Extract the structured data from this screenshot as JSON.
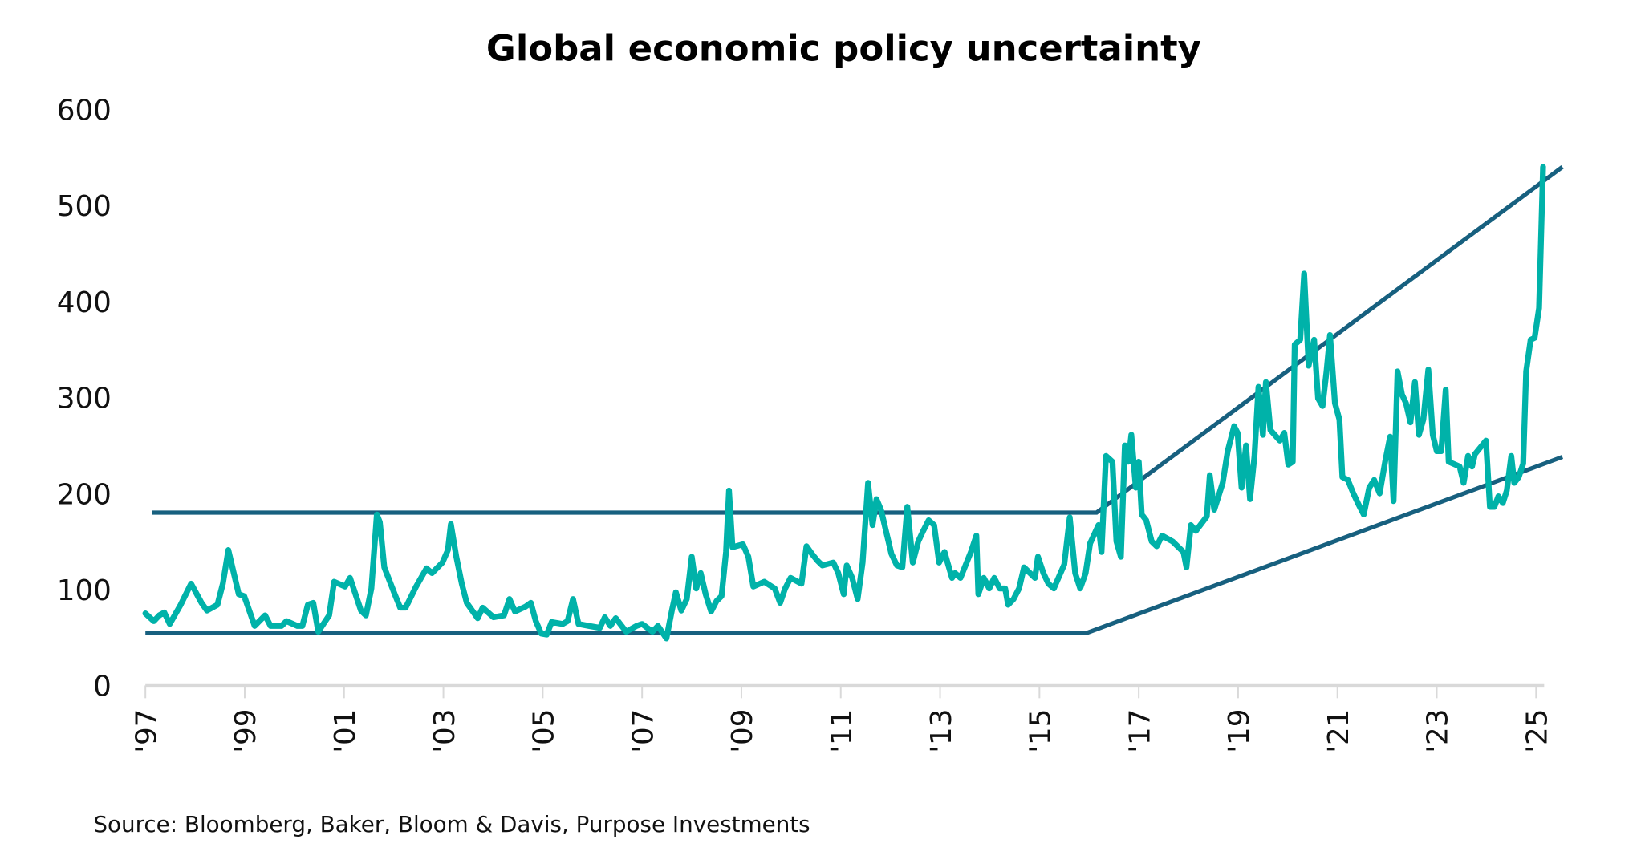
{
  "chart_data": {
    "type": "line",
    "title": "Global economic policy uncertainty",
    "xlabel": "",
    "ylabel": "",
    "ylim": [
      0,
      600
    ],
    "xlim": [
      1997,
      2025.5
    ],
    "y_ticks": [
      "0",
      "100",
      "200",
      "300",
      "400",
      "500",
      "600"
    ],
    "x_ticks": [
      {
        "year": 1997,
        "label": "'97"
      },
      {
        "year": 1999,
        "label": "'99"
      },
      {
        "year": 2001,
        "label": "'01"
      },
      {
        "year": 2003,
        "label": "'03"
      },
      {
        "year": 2005,
        "label": "'05"
      },
      {
        "year": 2007,
        "label": "'07"
      },
      {
        "year": 2009,
        "label": "'09"
      },
      {
        "year": 2011,
        "label": "'11"
      },
      {
        "year": 2013,
        "label": "'13"
      },
      {
        "year": 2015,
        "label": "'15"
      },
      {
        "year": 2017,
        "label": "'17"
      },
      {
        "year": 2019,
        "label": "'19"
      },
      {
        "year": 2021,
        "label": "'21"
      },
      {
        "year": 2023,
        "label": "'23"
      },
      {
        "year": 2025,
        "label": "'25"
      }
    ],
    "grid": false,
    "legend": "none",
    "colors": {
      "series": "#00B2A9",
      "trendlines": "#17607F",
      "axis": "#d9d9d9"
    },
    "series": [
      {
        "points": [
          [
            1997.0,
            75
          ],
          [
            1997.17,
            67
          ],
          [
            1997.28,
            73
          ],
          [
            1997.38,
            76
          ],
          [
            1997.49,
            64
          ],
          [
            1997.71,
            84
          ],
          [
            1997.92,
            106
          ],
          [
            1998.13,
            86
          ],
          [
            1998.24,
            78
          ],
          [
            1998.45,
            84
          ],
          [
            1998.56,
            106
          ],
          [
            1998.67,
            141
          ],
          [
            1998.88,
            95
          ],
          [
            1998.99,
            93
          ],
          [
            1999.2,
            62
          ],
          [
            1999.41,
            73
          ],
          [
            1999.52,
            62
          ],
          [
            1999.74,
            62
          ],
          [
            1999.84,
            67
          ],
          [
            2000.06,
            62
          ],
          [
            2000.16,
            62
          ],
          [
            2000.27,
            84
          ],
          [
            2000.38,
            86
          ],
          [
            2000.48,
            56
          ],
          [
            2000.7,
            73
          ],
          [
            2000.8,
            108
          ],
          [
            2001.02,
            103
          ],
          [
            2001.12,
            112
          ],
          [
            2001.34,
            78
          ],
          [
            2001.44,
            73
          ],
          [
            2001.55,
            101
          ],
          [
            2001.66,
            178
          ],
          [
            2001.72,
            170
          ],
          [
            2001.81,
            123
          ],
          [
            2002.02,
            95
          ],
          [
            2002.13,
            81
          ],
          [
            2002.24,
            81
          ],
          [
            2002.45,
            103
          ],
          [
            2002.66,
            122
          ],
          [
            2002.77,
            117
          ],
          [
            2002.98,
            128
          ],
          [
            2003.09,
            141
          ],
          [
            2003.15,
            168
          ],
          [
            2003.26,
            134
          ],
          [
            2003.37,
            106
          ],
          [
            2003.47,
            86
          ],
          [
            2003.69,
            70
          ],
          [
            2003.79,
            81
          ],
          [
            2004.01,
            71
          ],
          [
            2004.22,
            73
          ],
          [
            2004.33,
            90
          ],
          [
            2004.44,
            77
          ],
          [
            2004.65,
            82
          ],
          [
            2004.76,
            86
          ],
          [
            2004.86,
            67
          ],
          [
            2004.97,
            54
          ],
          [
            2005.08,
            53
          ],
          [
            2005.18,
            66
          ],
          [
            2005.4,
            64
          ],
          [
            2005.5,
            67
          ],
          [
            2005.61,
            90
          ],
          [
            2005.72,
            64
          ],
          [
            2005.93,
            62
          ],
          [
            2006.15,
            60
          ],
          [
            2006.25,
            71
          ],
          [
            2006.36,
            62
          ],
          [
            2006.47,
            70
          ],
          [
            2006.68,
            56
          ],
          [
            2006.89,
            62
          ],
          [
            2007.0,
            64
          ],
          [
            2007.21,
            56
          ],
          [
            2007.32,
            62
          ],
          [
            2007.49,
            49
          ],
          [
            2007.6,
            78
          ],
          [
            2007.68,
            97
          ],
          [
            2007.79,
            78
          ],
          [
            2007.9,
            90
          ],
          [
            2008.0,
            134
          ],
          [
            2008.09,
            101
          ],
          [
            2008.18,
            117
          ],
          [
            2008.28,
            95
          ],
          [
            2008.39,
            77
          ],
          [
            2008.5,
            88
          ],
          [
            2008.6,
            93
          ],
          [
            2008.69,
            139
          ],
          [
            2008.75,
            203
          ],
          [
            2008.82,
            144
          ],
          [
            2009.03,
            147
          ],
          [
            2009.14,
            134
          ],
          [
            2009.24,
            103
          ],
          [
            2009.46,
            108
          ],
          [
            2009.67,
            101
          ],
          [
            2009.78,
            86
          ],
          [
            2009.88,
            101
          ],
          [
            2009.99,
            112
          ],
          [
            2010.21,
            106
          ],
          [
            2010.31,
            145
          ],
          [
            2010.42,
            137
          ],
          [
            2010.53,
            130
          ],
          [
            2010.63,
            125
          ],
          [
            2010.85,
            128
          ],
          [
            2010.95,
            117
          ],
          [
            2011.06,
            95
          ],
          [
            2011.12,
            125
          ],
          [
            2011.23,
            112
          ],
          [
            2011.34,
            90
          ],
          [
            2011.44,
            128
          ],
          [
            2011.55,
            211
          ],
          [
            2011.64,
            167
          ],
          [
            2011.72,
            194
          ],
          [
            2011.81,
            183
          ],
          [
            2011.91,
            161
          ],
          [
            2012.02,
            137
          ],
          [
            2012.13,
            125
          ],
          [
            2012.24,
            123
          ],
          [
            2012.34,
            186
          ],
          [
            2012.45,
            128
          ],
          [
            2012.56,
            150
          ],
          [
            2012.66,
            161
          ],
          [
            2012.77,
            172
          ],
          [
            2012.88,
            167
          ],
          [
            2012.98,
            128
          ],
          [
            2013.09,
            139
          ],
          [
            2013.15,
            128
          ],
          [
            2013.24,
            112
          ],
          [
            2013.3,
            117
          ],
          [
            2013.41,
            112
          ],
          [
            2013.62,
            139
          ],
          [
            2013.73,
            156
          ],
          [
            2013.77,
            95
          ],
          [
            2013.88,
            112
          ],
          [
            2013.99,
            101
          ],
          [
            2014.09,
            112
          ],
          [
            2014.2,
            101
          ],
          [
            2014.31,
            101
          ],
          [
            2014.37,
            84
          ],
          [
            2014.48,
            90
          ],
          [
            2014.59,
            101
          ],
          [
            2014.69,
            123
          ],
          [
            2014.91,
            112
          ],
          [
            2014.97,
            134
          ],
          [
            2015.08,
            117
          ],
          [
            2015.18,
            106
          ],
          [
            2015.29,
            101
          ],
          [
            2015.5,
            126
          ],
          [
            2015.61,
            175
          ],
          [
            2015.72,
            117
          ],
          [
            2015.82,
            101
          ],
          [
            2015.93,
            117
          ],
          [
            2016.02,
            148
          ],
          [
            2016.19,
            167
          ],
          [
            2016.25,
            139
          ],
          [
            2016.34,
            239
          ],
          [
            2016.47,
            233
          ],
          [
            2016.55,
            150
          ],
          [
            2016.64,
            134
          ],
          [
            2016.72,
            250
          ],
          [
            2016.79,
            233
          ],
          [
            2016.85,
            261
          ],
          [
            2016.94,
            206
          ],
          [
            2017.0,
            233
          ],
          [
            2017.06,
            178
          ],
          [
            2017.15,
            172
          ],
          [
            2017.26,
            150
          ],
          [
            2017.36,
            145
          ],
          [
            2017.47,
            156
          ],
          [
            2017.68,
            150
          ],
          [
            2017.9,
            139
          ],
          [
            2017.96,
            123
          ],
          [
            2018.05,
            167
          ],
          [
            2018.15,
            161
          ],
          [
            2018.37,
            176
          ],
          [
            2018.43,
            219
          ],
          [
            2018.52,
            183
          ],
          [
            2018.69,
            211
          ],
          [
            2018.79,
            244
          ],
          [
            2018.92,
            270
          ],
          [
            2018.99,
            263
          ],
          [
            2019.07,
            206
          ],
          [
            2019.16,
            250
          ],
          [
            2019.24,
            194
          ],
          [
            2019.33,
            239
          ],
          [
            2019.41,
            311
          ],
          [
            2019.5,
            261
          ],
          [
            2019.56,
            316
          ],
          [
            2019.65,
            266
          ],
          [
            2019.84,
            255
          ],
          [
            2019.93,
            263
          ],
          [
            2020.01,
            230
          ],
          [
            2020.1,
            233
          ],
          [
            2020.14,
            355
          ],
          [
            2020.25,
            360
          ],
          [
            2020.33,
            429
          ],
          [
            2020.42,
            333
          ],
          [
            2020.53,
            360
          ],
          [
            2020.61,
            299
          ],
          [
            2020.7,
            291
          ],
          [
            2020.78,
            327
          ],
          [
            2020.85,
            365
          ],
          [
            2020.95,
            294
          ],
          [
            2021.04,
            277
          ],
          [
            2021.1,
            217
          ],
          [
            2021.21,
            214
          ],
          [
            2021.32,
            200
          ],
          [
            2021.42,
            189
          ],
          [
            2021.53,
            178
          ],
          [
            2021.64,
            206
          ],
          [
            2021.74,
            214
          ],
          [
            2021.85,
            200
          ],
          [
            2021.96,
            233
          ],
          [
            2022.06,
            259
          ],
          [
            2022.13,
            192
          ],
          [
            2022.21,
            327
          ],
          [
            2022.3,
            303
          ],
          [
            2022.38,
            294
          ],
          [
            2022.47,
            274
          ],
          [
            2022.56,
            316
          ],
          [
            2022.64,
            261
          ],
          [
            2022.73,
            277
          ],
          [
            2022.83,
            329
          ],
          [
            2022.92,
            261
          ],
          [
            2023.0,
            244
          ],
          [
            2023.09,
            244
          ],
          [
            2023.18,
            308
          ],
          [
            2023.24,
            233
          ],
          [
            2023.46,
            228
          ],
          [
            2023.54,
            211
          ],
          [
            2023.63,
            239
          ],
          [
            2023.71,
            228
          ],
          [
            2023.77,
            241
          ],
          [
            2023.99,
            255
          ],
          [
            2024.07,
            186
          ],
          [
            2024.16,
            186
          ],
          [
            2024.24,
            197
          ],
          [
            2024.33,
            190
          ],
          [
            2024.41,
            203
          ],
          [
            2024.5,
            239
          ],
          [
            2024.56,
            211
          ],
          [
            2024.65,
            217
          ],
          [
            2024.74,
            231
          ],
          [
            2024.8,
            327
          ],
          [
            2024.89,
            360
          ],
          [
            2024.97,
            362
          ],
          [
            2025.06,
            393
          ],
          [
            2025.14,
            540
          ]
        ]
      }
    ],
    "trendlines": [
      {
        "points": [
          [
            1997.13,
            180
          ],
          [
            2016.15,
            180
          ],
          [
            2025.53,
            540
          ]
        ]
      },
      {
        "points": [
          [
            1997.0,
            55
          ],
          [
            2015.97,
            55
          ],
          [
            2025.53,
            238
          ]
        ]
      }
    ],
    "source": "Source: Bloomberg, Baker, Bloom & Davis, Purpose Investments"
  }
}
